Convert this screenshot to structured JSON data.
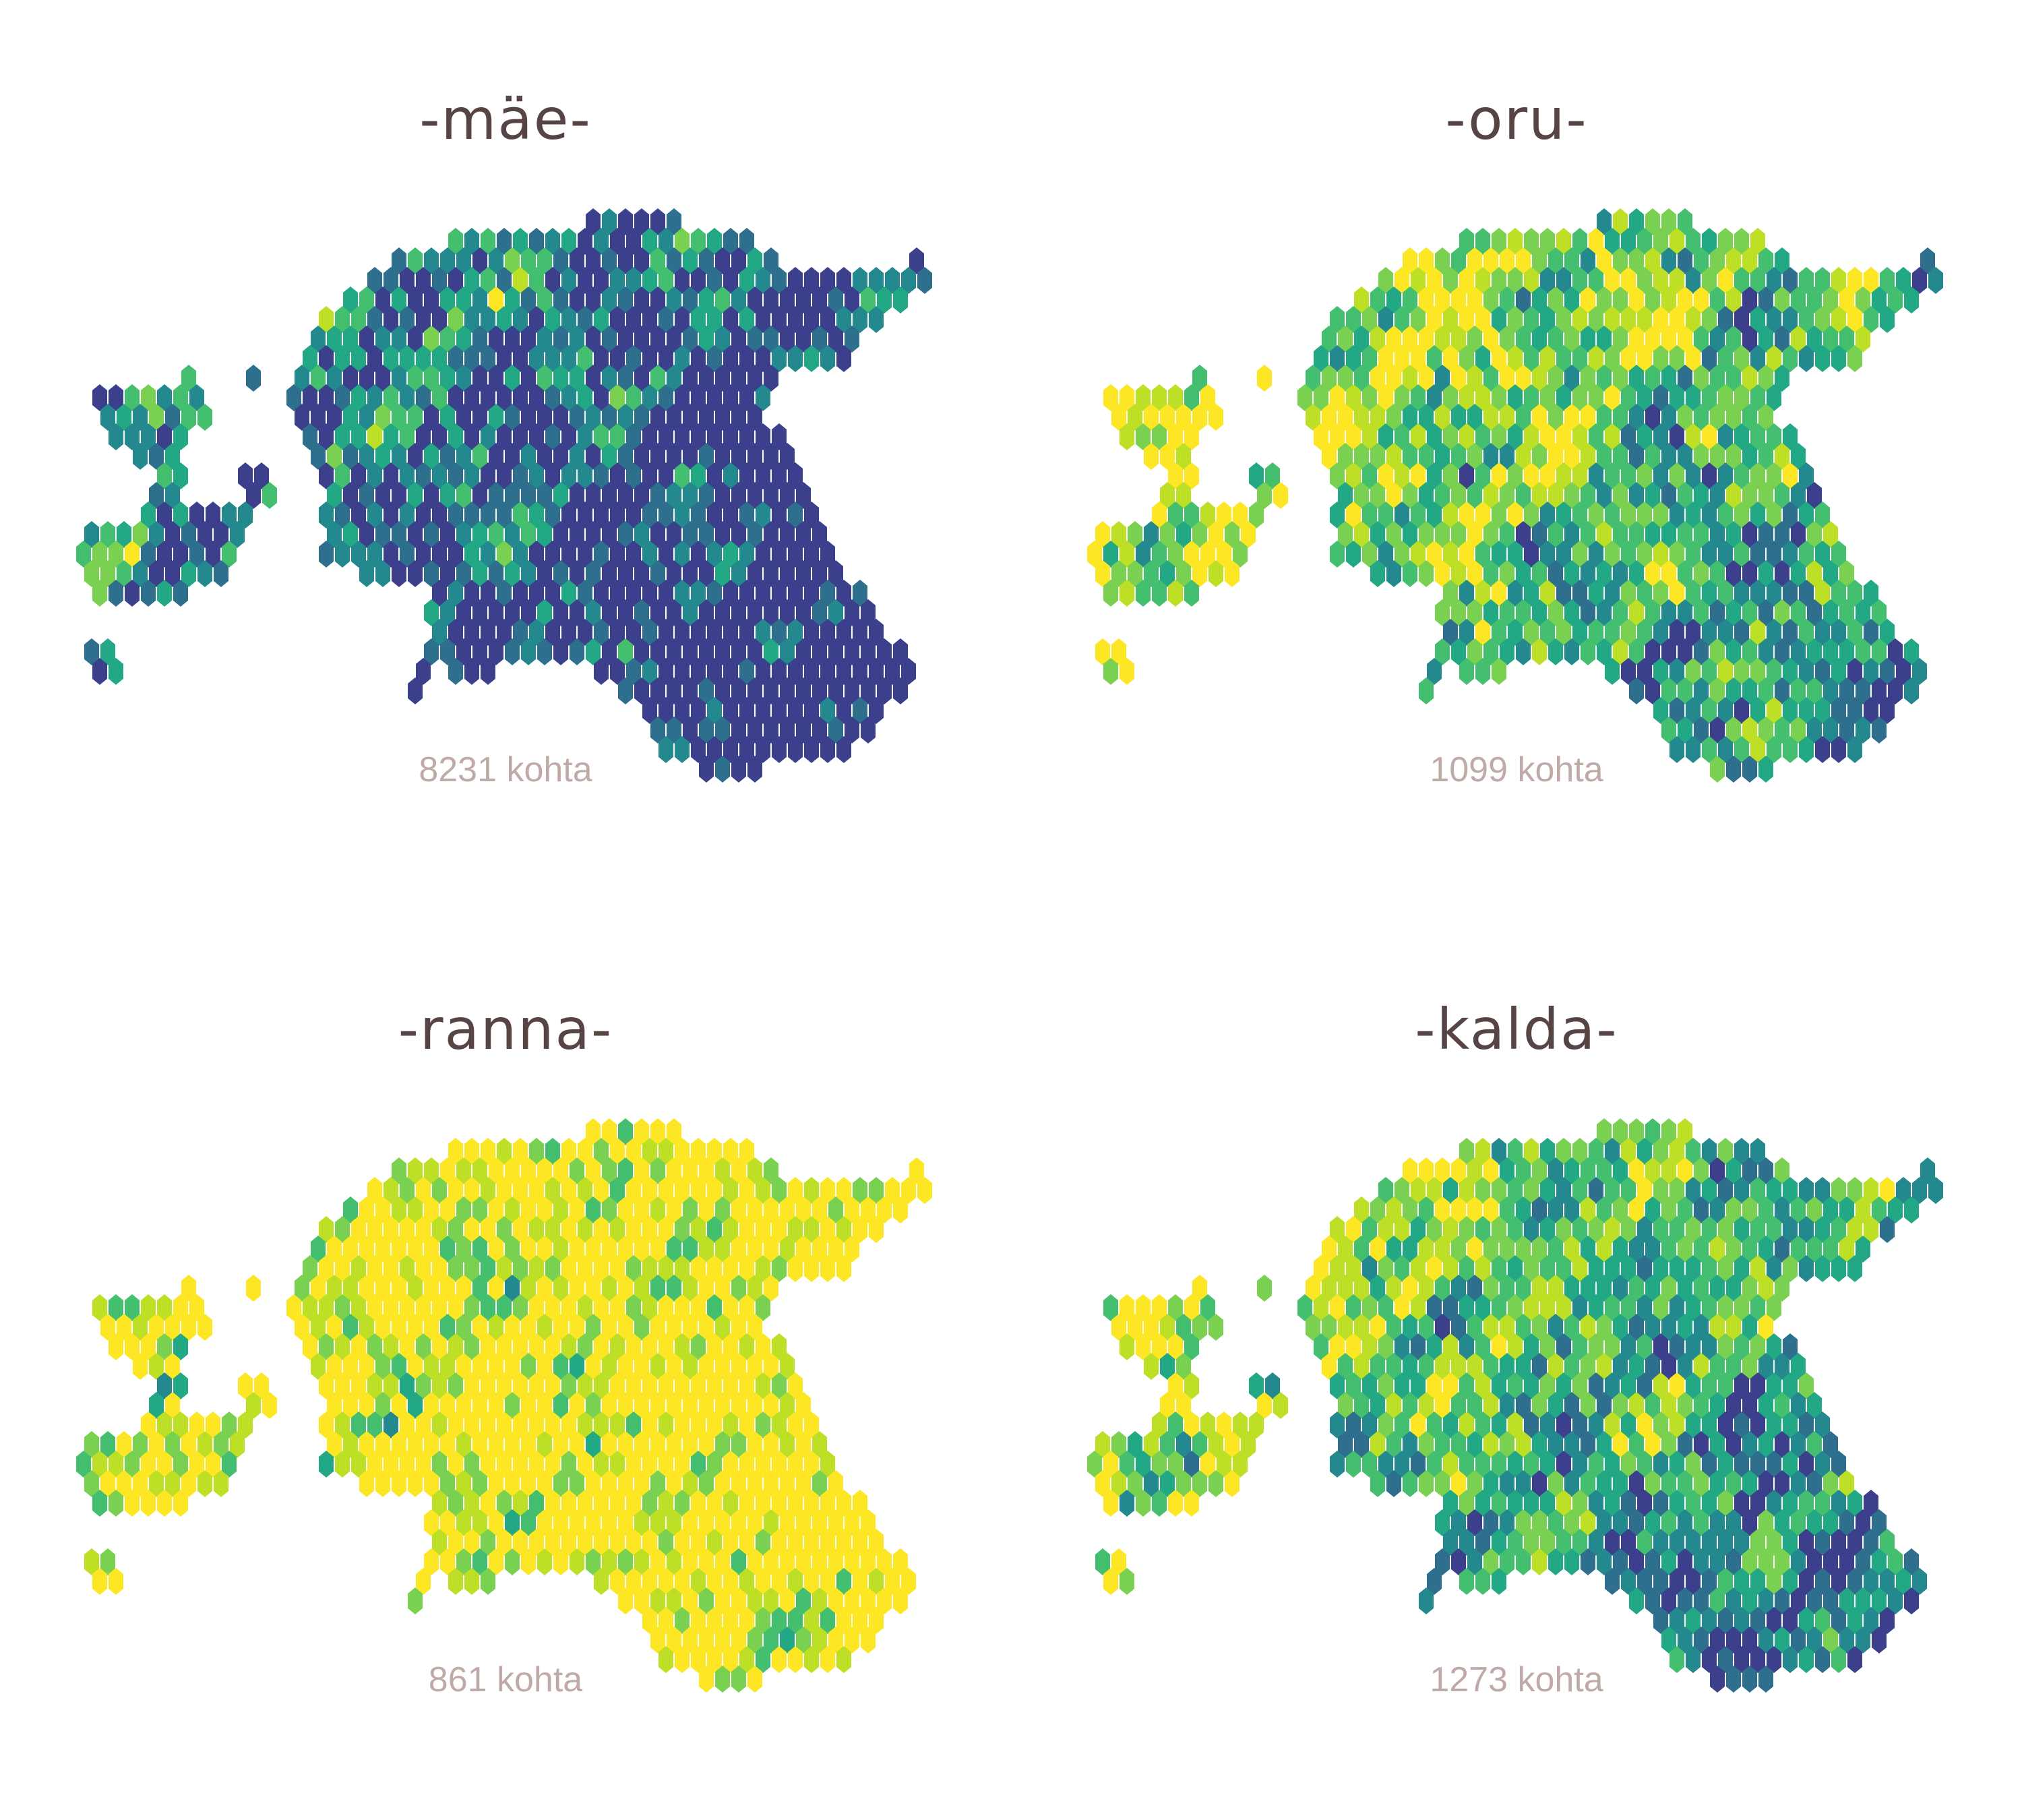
{
  "colors": {
    "palette": [
      "#3b3f8c",
      "#2e6f8e",
      "#23898e",
      "#22a884",
      "#44bf70",
      "#7ad151",
      "#bddf26",
      "#fde725"
    ],
    "title": "#574444",
    "count": "#c0aaa8"
  },
  "scale": "viridis",
  "maps": [
    {
      "title": "-mäe-",
      "count_label": "8231 kohta",
      "intensity": 0.78
    },
    {
      "title": "-oru-",
      "count_label": "1099 kohta",
      "intensity": 0.32
    },
    {
      "title": "-ranna-",
      "count_label": "861 kohta",
      "intensity": 0.08
    },
    {
      "title": "-kalda-",
      "count_label": "1273 kohta",
      "intensity": 0.4
    }
  ]
}
